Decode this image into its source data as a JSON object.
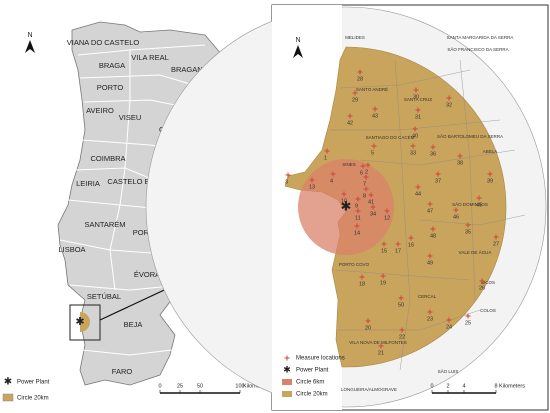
{
  "overview_map": {
    "north": "N",
    "districts": [
      "VIANA DO CASTELO",
      "VILA REAL",
      "BRAGA",
      "BRAGANÇA",
      "PORTO",
      "AVEIRO",
      "VISEU",
      "GUARDA",
      "COIMBRA",
      "CASTELO BRANCO",
      "LEIRIA",
      "SANTARÉM",
      "PORTALEGRE",
      "LISBOA",
      "ÉVORA",
      "SETÚBAL",
      "BEJA",
      "FARO"
    ],
    "legend": [
      "Power Plant",
      "Circle 20km"
    ],
    "scale": {
      "ticks": [
        0,
        25,
        50,
        100
      ],
      "unit": "Kilometers"
    }
  },
  "detail_map": {
    "north": "N",
    "parishes": [
      "MELIDES",
      "SANTA MARGARIDA DA SERRA",
      "SÃO FRANCISCO DA SERRA",
      "SANTO ANDRÉ",
      "SANTA CRUZ",
      "SÃO BARTOLOMEU DA SERRA",
      "SANTIAGO DO CACÉM",
      "ABELA",
      "SINES",
      "SÃO DOMINGOS",
      "VALE DE ÁGUA",
      "PORTO COVO",
      "BICOS",
      "CERCAL",
      "COLOS",
      "VILA NOVA DE MILFONTES",
      "LONGUEIRA/ALMOGRAVE",
      "SÃO LUIS"
    ],
    "measure_points": [
      1,
      2,
      3,
      4,
      5,
      6,
      7,
      8,
      9,
      10,
      11,
      12,
      13,
      14,
      15,
      16,
      17,
      18,
      19,
      20,
      21,
      22,
      23,
      24,
      25,
      26,
      27,
      28,
      29,
      30,
      31,
      32,
      33,
      34,
      35,
      36,
      37,
      38,
      39,
      40,
      41,
      42,
      43,
      44,
      45,
      46,
      47,
      48,
      49,
      50
    ],
    "legend": [
      "Measure locations",
      "Power Plant",
      "Circle 6km",
      "Circle 20km"
    ],
    "scale": {
      "ticks": [
        0,
        2,
        4,
        8
      ],
      "unit": "Kilometers"
    }
  }
}
